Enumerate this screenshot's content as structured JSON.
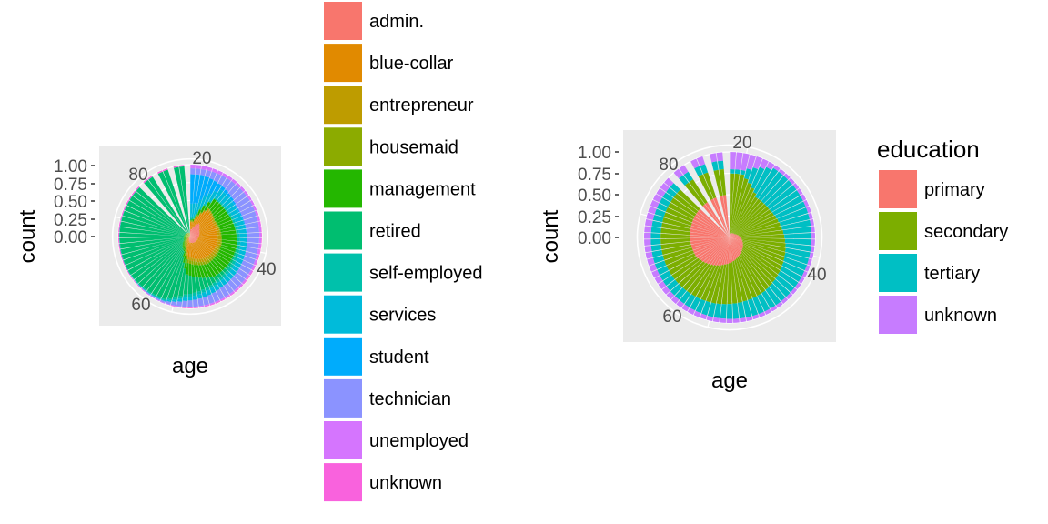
{
  "chart_data": [
    {
      "type": "bar",
      "coord": "polar",
      "position": "fill",
      "title": "",
      "xlabel": "age",
      "ylabel": "count",
      "x_ticks": [
        "20",
        "40",
        "60",
        "80"
      ],
      "y_ticks": [
        "0.00",
        "0.25",
        "0.50",
        "0.75",
        "1.00"
      ],
      "xlim": [
        18,
        96
      ],
      "ylim": [
        0,
        1
      ],
      "grid": true,
      "legend": {
        "title": "",
        "placement": "right",
        "entries": [
          {
            "label": "admin.",
            "color": "#F8766D"
          },
          {
            "label": "blue-collar",
            "color": "#E18A00"
          },
          {
            "label": "entrepreneur",
            "color": "#BE9C00"
          },
          {
            "label": "housemaid",
            "color": "#8CAB00"
          },
          {
            "label": "management",
            "color": "#24B700"
          },
          {
            "label": "retired",
            "color": "#00BE70"
          },
          {
            "label": "self-employed",
            "color": "#00C1AB"
          },
          {
            "label": "services",
            "color": "#00BBDA"
          },
          {
            "label": "student",
            "color": "#00ACFC"
          },
          {
            "label": "technician",
            "color": "#8B93FF"
          },
          {
            "label": "unemployed",
            "color": "#D575FE"
          },
          {
            "label": "unknown",
            "color": "#F962DD"
          }
        ]
      },
      "profile": [
        {
          "age": 20,
          "shares": [
            0.1,
            0.1,
            0.0,
            0.02,
            0.03,
            0.0,
            0.04,
            0.18,
            0.4,
            0.08,
            0.05,
            0.0
          ]
        },
        {
          "age": 25,
          "shares": [
            0.22,
            0.22,
            0.02,
            0.01,
            0.15,
            0.0,
            0.02,
            0.14,
            0.05,
            0.13,
            0.04,
            0.0
          ]
        },
        {
          "age": 30,
          "shares": [
            0.15,
            0.22,
            0.03,
            0.01,
            0.2,
            0.0,
            0.03,
            0.11,
            0.02,
            0.2,
            0.03,
            0.0
          ]
        },
        {
          "age": 40,
          "shares": [
            0.11,
            0.28,
            0.04,
            0.02,
            0.21,
            0.01,
            0.04,
            0.09,
            0.0,
            0.16,
            0.03,
            0.01
          ]
        },
        {
          "age": 50,
          "shares": [
            0.1,
            0.26,
            0.05,
            0.04,
            0.2,
            0.06,
            0.04,
            0.08,
            0.0,
            0.14,
            0.02,
            0.01
          ]
        },
        {
          "age": 58,
          "shares": [
            0.08,
            0.2,
            0.04,
            0.05,
            0.16,
            0.28,
            0.04,
            0.05,
            0.0,
            0.08,
            0.01,
            0.01
          ]
        },
        {
          "age": 62,
          "shares": [
            0.04,
            0.05,
            0.02,
            0.06,
            0.05,
            0.72,
            0.02,
            0.01,
            0.0,
            0.02,
            0.01,
            0.0
          ]
        },
        {
          "age": 70,
          "shares": [
            0.01,
            0.02,
            0.0,
            0.04,
            0.03,
            0.88,
            0.01,
            0.0,
            0.0,
            0.0,
            0.0,
            0.01
          ]
        },
        {
          "age": 96,
          "shares": [
            0.0,
            0.0,
            0.0,
            0.05,
            0.0,
            0.93,
            0.0,
            0.0,
            0.0,
            0.0,
            0.0,
            0.02
          ]
        }
      ]
    },
    {
      "type": "bar",
      "coord": "polar",
      "position": "fill",
      "title": "",
      "xlabel": "age",
      "ylabel": "count",
      "x_ticks": [
        "20",
        "40",
        "60",
        "80"
      ],
      "y_ticks": [
        "0.00",
        "0.25",
        "0.50",
        "0.75",
        "1.00"
      ],
      "xlim": [
        18,
        96
      ],
      "ylim": [
        0,
        1
      ],
      "grid": true,
      "legend": {
        "title": "education",
        "placement": "right",
        "entries": [
          {
            "label": "primary",
            "color": "#F8766D"
          },
          {
            "label": "secondary",
            "color": "#7CAE00"
          },
          {
            "label": "tertiary",
            "color": "#00BFC4"
          },
          {
            "label": "unknown",
            "color": "#C77CFF"
          }
        ]
      },
      "profile": [
        {
          "age": 20,
          "shares": [
            0.05,
            0.7,
            0.05,
            0.2
          ]
        },
        {
          "age": 25,
          "shares": [
            0.06,
            0.5,
            0.4,
            0.04
          ]
        },
        {
          "age": 30,
          "shares": [
            0.07,
            0.5,
            0.39,
            0.04
          ]
        },
        {
          "age": 40,
          "shares": [
            0.15,
            0.52,
            0.29,
            0.04
          ]
        },
        {
          "age": 50,
          "shares": [
            0.23,
            0.52,
            0.21,
            0.04
          ]
        },
        {
          "age": 60,
          "shares": [
            0.33,
            0.46,
            0.16,
            0.05
          ]
        },
        {
          "age": 70,
          "shares": [
            0.45,
            0.36,
            0.12,
            0.07
          ]
        },
        {
          "age": 96,
          "shares": [
            0.5,
            0.3,
            0.1,
            0.1
          ]
        }
      ]
    }
  ]
}
